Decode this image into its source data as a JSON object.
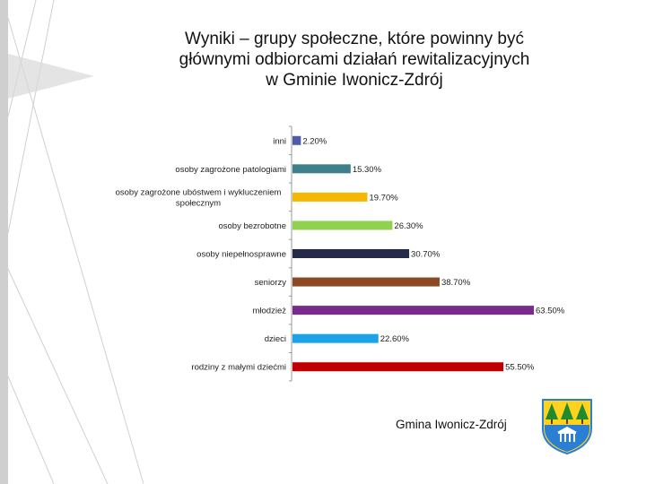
{
  "title_lines": [
    "Wyniki – grupy społeczne, które powinny być",
    "głównymi odbiorcami działań rewitalizacyjnych",
    "w Gminie Iwonicz-Zdrój"
  ],
  "footer": {
    "label": "Gmina Iwonicz-Zdrój",
    "crest_icon": "coat-of-arms-icon"
  },
  "chart_data": {
    "type": "bar",
    "orientation": "horizontal",
    "title": "Wyniki – grupy społeczne, które powinny być głównymi odbiorcami działań rewitalizacyjnych w Gminie Iwonicz-Zdrój",
    "xlim": [
      0,
      64
    ],
    "grid": false,
    "categories": [
      [
        "inni"
      ],
      [
        "osoby zagrożone patologiami"
      ],
      [
        "osoby zagrożone ubóstwem i wykluczeniem",
        "społecznym"
      ],
      [
        "osoby bezrobotne"
      ],
      [
        "osoby niepełnosprawne"
      ],
      [
        "seniorzy"
      ],
      [
        "młodzież"
      ],
      [
        "dzieci"
      ],
      [
        "rodziny z małymi dziećmi"
      ]
    ],
    "values": [
      2.2,
      15.3,
      19.7,
      26.3,
      30.7,
      38.7,
      63.5,
      22.6,
      55.5
    ],
    "data_labels": [
      "2.20%",
      "15.30%",
      "19.70%",
      "26.30%",
      "30.70%",
      "38.70%",
      "63.50%",
      "22.60%",
      "55.50%"
    ],
    "colors": [
      "#4f5aa8",
      "#3e7f8c",
      "#f5b800",
      "#92d050",
      "#242a47",
      "#8b4a22",
      "#7a2a8c",
      "#1aa3e8",
      "#c00000"
    ]
  }
}
